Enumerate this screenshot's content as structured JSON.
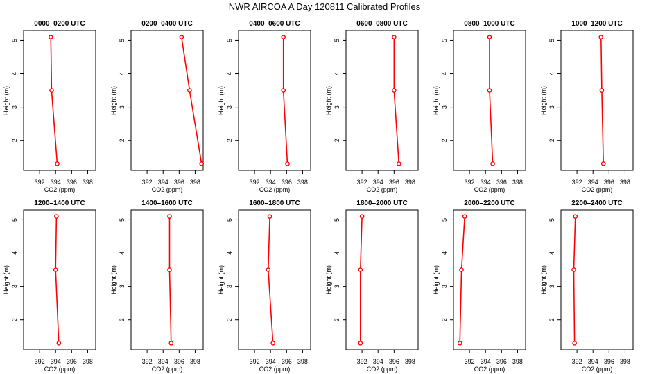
{
  "figure": {
    "title": "NWR AIRCOA A  Day 120811  Calibrated Profiles"
  },
  "chart_data": [
    {
      "type": "line",
      "title": "0000–0200 UTC",
      "xlabel": "CO2 (ppm)",
      "ylabel": "Height (m)",
      "xlim": [
        390,
        399
      ],
      "ylim": [
        1.1,
        5.3
      ],
      "xticks": [
        392,
        394,
        396,
        398
      ],
      "yticks": [
        2,
        3,
        4,
        5
      ],
      "series": [
        {
          "x": [
            393.4,
            393.5,
            394.2
          ],
          "y": [
            5.1,
            3.5,
            1.3
          ]
        }
      ]
    },
    {
      "type": "line",
      "title": "0200–0400 UTC",
      "xlabel": "CO2 (ppm)",
      "ylabel": "Height (m)",
      "xlim": [
        390,
        399
      ],
      "ylim": [
        1.1,
        5.3
      ],
      "xticks": [
        392,
        394,
        396,
        398
      ],
      "yticks": [
        2,
        3,
        4,
        5
      ],
      "series": [
        {
          "x": [
            396.3,
            397.3,
            398.8
          ],
          "y": [
            5.1,
            3.5,
            1.3
          ]
        }
      ]
    },
    {
      "type": "line",
      "title": "0400–0600 UTC",
      "xlabel": "CO2 (ppm)",
      "ylabel": "Height (m)",
      "xlim": [
        390,
        399
      ],
      "ylim": [
        1.1,
        5.3
      ],
      "xticks": [
        392,
        394,
        396,
        398
      ],
      "yticks": [
        2,
        3,
        4,
        5
      ],
      "series": [
        {
          "x": [
            395.6,
            395.6,
            396.1
          ],
          "y": [
            5.1,
            3.5,
            1.3
          ]
        }
      ]
    },
    {
      "type": "line",
      "title": "0600–0800 UTC",
      "xlabel": "CO2 (ppm)",
      "ylabel": "Height (m)",
      "xlim": [
        390,
        399
      ],
      "ylim": [
        1.1,
        5.3
      ],
      "xticks": [
        392,
        394,
        396,
        398
      ],
      "yticks": [
        2,
        3,
        4,
        5
      ],
      "series": [
        {
          "x": [
            396.0,
            396.0,
            396.6
          ],
          "y": [
            5.1,
            3.5,
            1.3
          ]
        }
      ]
    },
    {
      "type": "line",
      "title": "0800–1000 UTC",
      "xlabel": "CO2 (ppm)",
      "ylabel": "Height (m)",
      "xlim": [
        390,
        399
      ],
      "ylim": [
        1.1,
        5.3
      ],
      "xticks": [
        392,
        394,
        396,
        398
      ],
      "yticks": [
        2,
        3,
        4,
        5
      ],
      "series": [
        {
          "x": [
            394.5,
            394.5,
            394.9
          ],
          "y": [
            5.1,
            3.5,
            1.3
          ]
        }
      ]
    },
    {
      "type": "line",
      "title": "1000–1200 UTC",
      "xlabel": "CO2 (ppm)",
      "ylabel": "Height (m)",
      "xlim": [
        390,
        399
      ],
      "ylim": [
        1.1,
        5.3
      ],
      "xticks": [
        392,
        394,
        396,
        398
      ],
      "yticks": [
        2,
        3,
        4,
        5
      ],
      "series": [
        {
          "x": [
            395.0,
            395.1,
            395.3
          ],
          "y": [
            5.1,
            3.5,
            1.3
          ]
        }
      ]
    },
    {
      "type": "line",
      "title": "1200–1400 UTC",
      "xlabel": "CO2 (ppm)",
      "ylabel": "Height (m)",
      "xlim": [
        390,
        399
      ],
      "ylim": [
        1.1,
        5.3
      ],
      "xticks": [
        392,
        394,
        396,
        398
      ],
      "yticks": [
        2,
        3,
        4,
        5
      ],
      "series": [
        {
          "x": [
            394.1,
            394.0,
            394.4
          ],
          "y": [
            5.1,
            3.5,
            1.3
          ]
        }
      ]
    },
    {
      "type": "line",
      "title": "1400–1600 UTC",
      "xlabel": "CO2 (ppm)",
      "ylabel": "Height (m)",
      "xlim": [
        390,
        399
      ],
      "ylim": [
        1.1,
        5.3
      ],
      "xticks": [
        392,
        394,
        396,
        398
      ],
      "yticks": [
        2,
        3,
        4,
        5
      ],
      "series": [
        {
          "x": [
            394.8,
            394.8,
            395.0
          ],
          "y": [
            5.1,
            3.5,
            1.3
          ]
        }
      ]
    },
    {
      "type": "line",
      "title": "1600–1800 UTC",
      "xlabel": "CO2 (ppm)",
      "ylabel": "Height (m)",
      "xlim": [
        390,
        399
      ],
      "ylim": [
        1.1,
        5.3
      ],
      "xticks": [
        392,
        394,
        396,
        398
      ],
      "yticks": [
        2,
        3,
        4,
        5
      ],
      "series": [
        {
          "x": [
            393.9,
            393.7,
            394.3
          ],
          "y": [
            5.1,
            3.5,
            1.3
          ]
        }
      ]
    },
    {
      "type": "line",
      "title": "1800–2000 UTC",
      "xlabel": "CO2 (ppm)",
      "ylabel": "Height (m)",
      "xlim": [
        390,
        399
      ],
      "ylim": [
        1.1,
        5.3
      ],
      "xticks": [
        392,
        394,
        396,
        398
      ],
      "yticks": [
        2,
        3,
        4,
        5
      ],
      "series": [
        {
          "x": [
            392.0,
            391.8,
            391.8
          ],
          "y": [
            5.1,
            3.5,
            1.3
          ]
        }
      ]
    },
    {
      "type": "line",
      "title": "2000–2200 UTC",
      "xlabel": "CO2 (ppm)",
      "ylabel": "Height (m)",
      "xlim": [
        390,
        399
      ],
      "ylim": [
        1.1,
        5.3
      ],
      "xticks": [
        392,
        394,
        396,
        398
      ],
      "yticks": [
        2,
        3,
        4,
        5
      ],
      "series": [
        {
          "x": [
            391.4,
            391.0,
            390.8
          ],
          "y": [
            5.1,
            3.5,
            1.3
          ]
        }
      ]
    },
    {
      "type": "line",
      "title": "2200–2400 UTC",
      "xlabel": "CO2 (ppm)",
      "ylabel": "Height (m)",
      "xlim": [
        390,
        399
      ],
      "ylim": [
        1.1,
        5.3
      ],
      "xticks": [
        392,
        394,
        396,
        398
      ],
      "yticks": [
        2,
        3,
        4,
        5
      ],
      "series": [
        {
          "x": [
            391.8,
            391.6,
            391.7
          ],
          "y": [
            5.1,
            3.5,
            1.3
          ]
        }
      ]
    }
  ],
  "style": {
    "series_color": "#ff0000",
    "axis_color": "#000000"
  }
}
